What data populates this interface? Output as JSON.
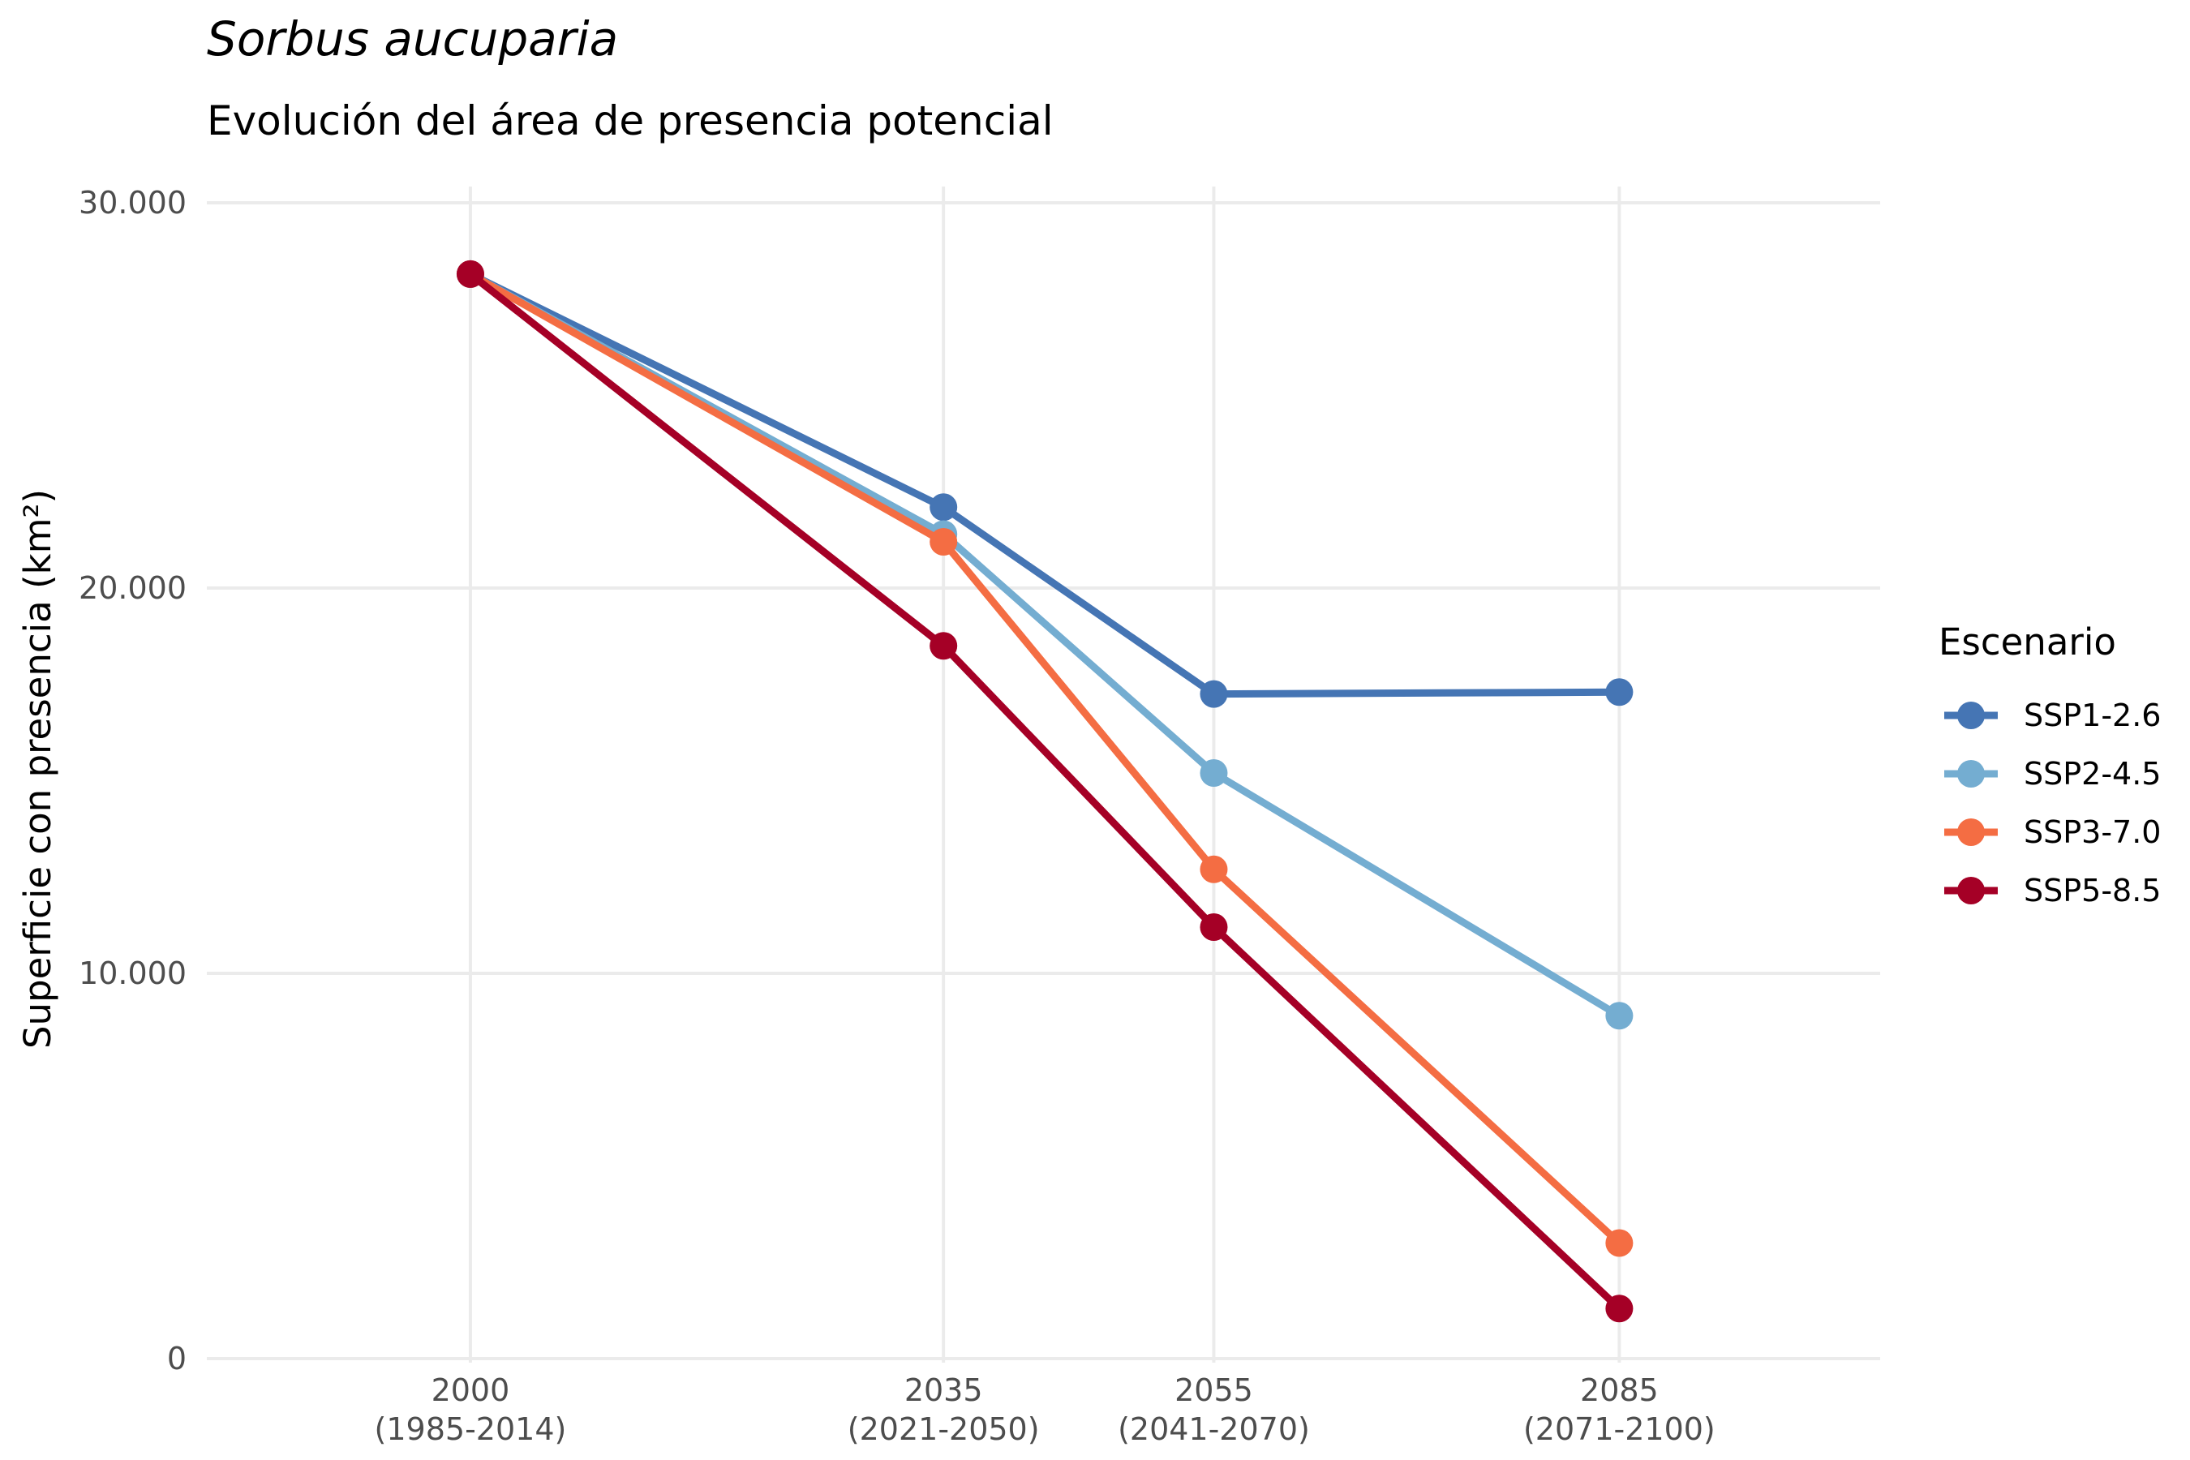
{
  "chart_data": {
    "type": "line",
    "title": "Sorbus aucuparia",
    "subtitle": "Evolución del área de presencia potencial",
    "ylabel": "Superficie con presencia (km²)",
    "xlabel": "",
    "x": [
      2000,
      2035,
      2055,
      2085
    ],
    "x_tick_labels": [
      [
        "2000",
        "(1985-2014)"
      ],
      [
        "2035",
        "(2021-2050)"
      ],
      [
        "2055",
        "(2041-2070)"
      ],
      [
        "2085",
        "(2071-2100)"
      ]
    ],
    "xlim": [
      1980.5,
      2104.3
    ],
    "ylim": [
      0,
      30000
    ],
    "y_ticks": [
      0,
      10000,
      20000,
      30000
    ],
    "y_tick_labels": [
      "0",
      "10.000",
      "20.000",
      "30.000"
    ],
    "grid": true,
    "legend_title": "Escenario",
    "legend_position": "right",
    "series": [
      {
        "name": "SSP1-2.6",
        "color": "#4575b4",
        "values": [
          28150,
          22100,
          17250,
          17300
        ]
      },
      {
        "name": "SSP2-4.5",
        "color": "#74add1",
        "values": [
          28150,
          21400,
          15200,
          8900
        ]
      },
      {
        "name": "SSP3-7.0",
        "color": "#f46d43",
        "values": [
          28150,
          21200,
          12700,
          3000
        ]
      },
      {
        "name": "SSP5-8.5",
        "color": "#a50026",
        "values": [
          28150,
          18500,
          11200,
          1300
        ]
      }
    ]
  }
}
